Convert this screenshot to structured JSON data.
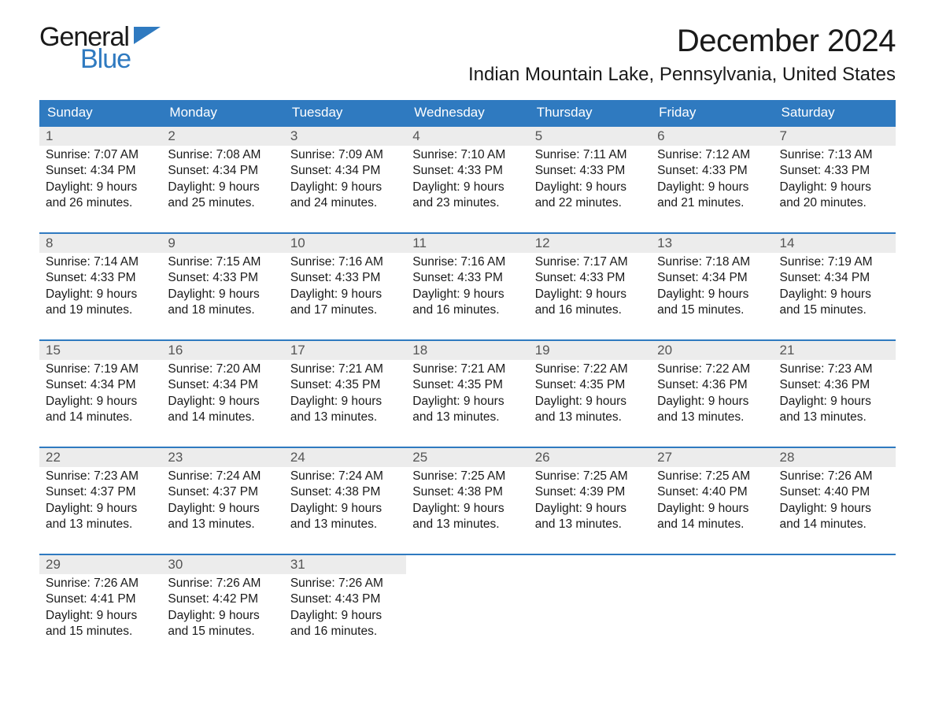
{
  "brand": {
    "general": "General",
    "blue": "Blue",
    "text_color": "#1a1a1a",
    "accent_color": "#2f7ac0"
  },
  "title": "December 2024",
  "location": "Indian Mountain Lake, Pennsylvania, United States",
  "colors": {
    "header_bg": "#2f7ac0",
    "header_text": "#ffffff",
    "daynum_bg": "#ececec",
    "week_border": "#2f7ac0",
    "background": "#ffffff",
    "text": "#1a1a1a"
  },
  "day_headers": [
    "Sunday",
    "Monday",
    "Tuesday",
    "Wednesday",
    "Thursday",
    "Friday",
    "Saturday"
  ],
  "weeks": [
    [
      {
        "n": "1",
        "sr": "Sunrise: 7:07 AM",
        "ss": "Sunset: 4:34 PM",
        "d1": "Daylight: 9 hours",
        "d2": "and 26 minutes."
      },
      {
        "n": "2",
        "sr": "Sunrise: 7:08 AM",
        "ss": "Sunset: 4:34 PM",
        "d1": "Daylight: 9 hours",
        "d2": "and 25 minutes."
      },
      {
        "n": "3",
        "sr": "Sunrise: 7:09 AM",
        "ss": "Sunset: 4:34 PM",
        "d1": "Daylight: 9 hours",
        "d2": "and 24 minutes."
      },
      {
        "n": "4",
        "sr": "Sunrise: 7:10 AM",
        "ss": "Sunset: 4:33 PM",
        "d1": "Daylight: 9 hours",
        "d2": "and 23 minutes."
      },
      {
        "n": "5",
        "sr": "Sunrise: 7:11 AM",
        "ss": "Sunset: 4:33 PM",
        "d1": "Daylight: 9 hours",
        "d2": "and 22 minutes."
      },
      {
        "n": "6",
        "sr": "Sunrise: 7:12 AM",
        "ss": "Sunset: 4:33 PM",
        "d1": "Daylight: 9 hours",
        "d2": "and 21 minutes."
      },
      {
        "n": "7",
        "sr": "Sunrise: 7:13 AM",
        "ss": "Sunset: 4:33 PM",
        "d1": "Daylight: 9 hours",
        "d2": "and 20 minutes."
      }
    ],
    [
      {
        "n": "8",
        "sr": "Sunrise: 7:14 AM",
        "ss": "Sunset: 4:33 PM",
        "d1": "Daylight: 9 hours",
        "d2": "and 19 minutes."
      },
      {
        "n": "9",
        "sr": "Sunrise: 7:15 AM",
        "ss": "Sunset: 4:33 PM",
        "d1": "Daylight: 9 hours",
        "d2": "and 18 minutes."
      },
      {
        "n": "10",
        "sr": "Sunrise: 7:16 AM",
        "ss": "Sunset: 4:33 PM",
        "d1": "Daylight: 9 hours",
        "d2": "and 17 minutes."
      },
      {
        "n": "11",
        "sr": "Sunrise: 7:16 AM",
        "ss": "Sunset: 4:33 PM",
        "d1": "Daylight: 9 hours",
        "d2": "and 16 minutes."
      },
      {
        "n": "12",
        "sr": "Sunrise: 7:17 AM",
        "ss": "Sunset: 4:33 PM",
        "d1": "Daylight: 9 hours",
        "d2": "and 16 minutes."
      },
      {
        "n": "13",
        "sr": "Sunrise: 7:18 AM",
        "ss": "Sunset: 4:34 PM",
        "d1": "Daylight: 9 hours",
        "d2": "and 15 minutes."
      },
      {
        "n": "14",
        "sr": "Sunrise: 7:19 AM",
        "ss": "Sunset: 4:34 PM",
        "d1": "Daylight: 9 hours",
        "d2": "and 15 minutes."
      }
    ],
    [
      {
        "n": "15",
        "sr": "Sunrise: 7:19 AM",
        "ss": "Sunset: 4:34 PM",
        "d1": "Daylight: 9 hours",
        "d2": "and 14 minutes."
      },
      {
        "n": "16",
        "sr": "Sunrise: 7:20 AM",
        "ss": "Sunset: 4:34 PM",
        "d1": "Daylight: 9 hours",
        "d2": "and 14 minutes."
      },
      {
        "n": "17",
        "sr": "Sunrise: 7:21 AM",
        "ss": "Sunset: 4:35 PM",
        "d1": "Daylight: 9 hours",
        "d2": "and 13 minutes."
      },
      {
        "n": "18",
        "sr": "Sunrise: 7:21 AM",
        "ss": "Sunset: 4:35 PM",
        "d1": "Daylight: 9 hours",
        "d2": "and 13 minutes."
      },
      {
        "n": "19",
        "sr": "Sunrise: 7:22 AM",
        "ss": "Sunset: 4:35 PM",
        "d1": "Daylight: 9 hours",
        "d2": "and 13 minutes."
      },
      {
        "n": "20",
        "sr": "Sunrise: 7:22 AM",
        "ss": "Sunset: 4:36 PM",
        "d1": "Daylight: 9 hours",
        "d2": "and 13 minutes."
      },
      {
        "n": "21",
        "sr": "Sunrise: 7:23 AM",
        "ss": "Sunset: 4:36 PM",
        "d1": "Daylight: 9 hours",
        "d2": "and 13 minutes."
      }
    ],
    [
      {
        "n": "22",
        "sr": "Sunrise: 7:23 AM",
        "ss": "Sunset: 4:37 PM",
        "d1": "Daylight: 9 hours",
        "d2": "and 13 minutes."
      },
      {
        "n": "23",
        "sr": "Sunrise: 7:24 AM",
        "ss": "Sunset: 4:37 PM",
        "d1": "Daylight: 9 hours",
        "d2": "and 13 minutes."
      },
      {
        "n": "24",
        "sr": "Sunrise: 7:24 AM",
        "ss": "Sunset: 4:38 PM",
        "d1": "Daylight: 9 hours",
        "d2": "and 13 minutes."
      },
      {
        "n": "25",
        "sr": "Sunrise: 7:25 AM",
        "ss": "Sunset: 4:38 PM",
        "d1": "Daylight: 9 hours",
        "d2": "and 13 minutes."
      },
      {
        "n": "26",
        "sr": "Sunrise: 7:25 AM",
        "ss": "Sunset: 4:39 PM",
        "d1": "Daylight: 9 hours",
        "d2": "and 13 minutes."
      },
      {
        "n": "27",
        "sr": "Sunrise: 7:25 AM",
        "ss": "Sunset: 4:40 PM",
        "d1": "Daylight: 9 hours",
        "d2": "and 14 minutes."
      },
      {
        "n": "28",
        "sr": "Sunrise: 7:26 AM",
        "ss": "Sunset: 4:40 PM",
        "d1": "Daylight: 9 hours",
        "d2": "and 14 minutes."
      }
    ],
    [
      {
        "n": "29",
        "sr": "Sunrise: 7:26 AM",
        "ss": "Sunset: 4:41 PM",
        "d1": "Daylight: 9 hours",
        "d2": "and 15 minutes."
      },
      {
        "n": "30",
        "sr": "Sunrise: 7:26 AM",
        "ss": "Sunset: 4:42 PM",
        "d1": "Daylight: 9 hours",
        "d2": "and 15 minutes."
      },
      {
        "n": "31",
        "sr": "Sunrise: 7:26 AM",
        "ss": "Sunset: 4:43 PM",
        "d1": "Daylight: 9 hours",
        "d2": "and 16 minutes."
      },
      {
        "empty": true
      },
      {
        "empty": true
      },
      {
        "empty": true
      },
      {
        "empty": true
      }
    ]
  ]
}
